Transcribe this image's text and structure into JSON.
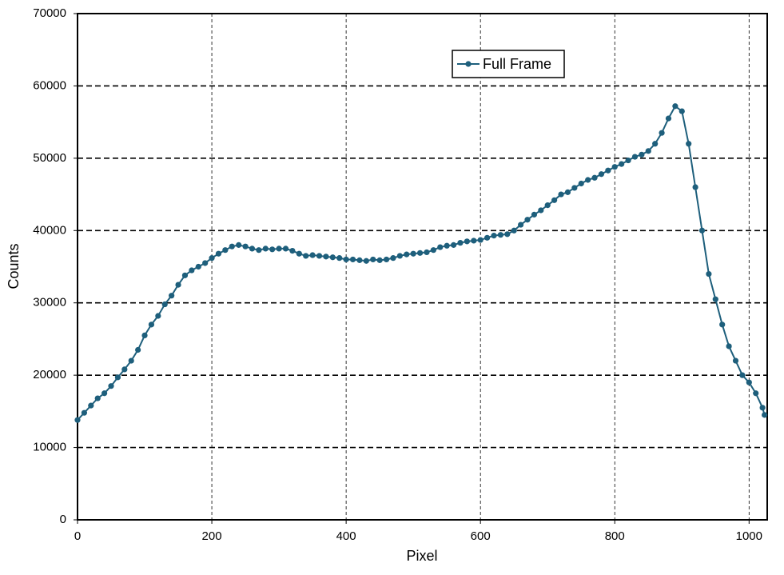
{
  "chart_data": {
    "type": "line",
    "x_label": "Pixel",
    "y_label": "Counts",
    "x": [
      0,
      10,
      20,
      30,
      40,
      50,
      60,
      70,
      80,
      90,
      100,
      110,
      120,
      130,
      140,
      150,
      160,
      170,
      180,
      190,
      200,
      210,
      220,
      230,
      240,
      250,
      260,
      270,
      280,
      290,
      300,
      310,
      320,
      330,
      340,
      350,
      360,
      370,
      380,
      390,
      400,
      410,
      420,
      430,
      440,
      450,
      460,
      470,
      480,
      490,
      500,
      510,
      520,
      530,
      540,
      550,
      560,
      570,
      580,
      590,
      600,
      610,
      620,
      630,
      640,
      650,
      660,
      670,
      680,
      690,
      700,
      710,
      720,
      730,
      740,
      750,
      760,
      770,
      780,
      790,
      800,
      810,
      820,
      830,
      840,
      850,
      860,
      870,
      880,
      890,
      900,
      910,
      920,
      930,
      940,
      950,
      960,
      970,
      980,
      990,
      1000,
      1010,
      1020,
      1023
    ],
    "series": [
      {
        "name": "Full Frame",
        "color": "#1e5f7c",
        "values": [
          13800,
          14800,
          15800,
          16800,
          17500,
          18500,
          19700,
          20800,
          22000,
          23500,
          25500,
          27000,
          28200,
          29800,
          31000,
          32500,
          33800,
          34500,
          35000,
          35500,
          36200,
          36800,
          37300,
          37800,
          38000,
          37800,
          37500,
          37300,
          37500,
          37400,
          37500,
          37500,
          37200,
          36800,
          36500,
          36600,
          36500,
          36400,
          36300,
          36200,
          36000,
          36000,
          35900,
          35800,
          36000,
          35900,
          36000,
          36200,
          36500,
          36700,
          36800,
          36900,
          37000,
          37300,
          37700,
          37900,
          38000,
          38300,
          38500,
          38600,
          38700,
          39000,
          39300,
          39400,
          39500,
          40000,
          40800,
          41500,
          42200,
          42800,
          43500,
          44200,
          45000,
          45300,
          45900,
          46500,
          47000,
          47300,
          47800,
          48300,
          48800,
          49200,
          49700,
          50200,
          50500,
          51000,
          52000,
          53500,
          55500,
          57200,
          56500,
          52000,
          46000,
          40000,
          34000,
          30500,
          27000,
          24000,
          22000,
          20000,
          19000,
          17500,
          15500,
          14500
        ]
      }
    ],
    "xlim": [
      0,
      1027
    ],
    "ylim": [
      0,
      70000
    ],
    "xticks": [
      0,
      200,
      400,
      600,
      800,
      1000
    ],
    "yticks": [
      0,
      10000,
      20000,
      30000,
      40000,
      50000,
      60000,
      70000
    ],
    "grid": true,
    "legend": "top-right"
  }
}
